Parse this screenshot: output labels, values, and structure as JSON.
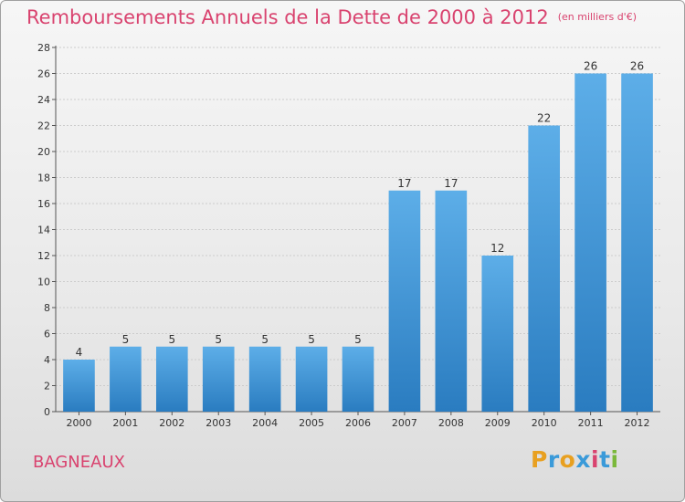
{
  "header": {
    "title": "Remboursements Annuels de la Dette de 2000 à 2012",
    "subtitle": "(en milliers d'€)"
  },
  "footer": {
    "commune": "BAGNEAUX",
    "logo_text": "Proxiti",
    "logo_colors": [
      "#e8a020",
      "#3a9ad9",
      "#e8a020",
      "#3a9ad9",
      "#d9436f",
      "#3a9ad9",
      "#7ab83a"
    ]
  },
  "colors": {
    "title": "#d9436f",
    "bar_light": "#5daee8",
    "bar_dark": "#2a7cc0",
    "grid": "#cccccc"
  },
  "chart_data": {
    "type": "bar",
    "title": "Remboursements Annuels de la Dette de 2000 à 2012",
    "subtitle": "(en milliers d'€)",
    "xlabel": "",
    "ylabel": "",
    "categories": [
      "2000",
      "2001",
      "2002",
      "2003",
      "2004",
      "2005",
      "2006",
      "2007",
      "2008",
      "2009",
      "2010",
      "2011",
      "2012"
    ],
    "values": [
      4,
      5,
      5,
      5,
      5,
      5,
      5,
      17,
      17,
      12,
      22,
      26,
      26
    ],
    "ylim": [
      0,
      28
    ],
    "yticks": [
      0,
      2,
      4,
      6,
      8,
      10,
      12,
      14,
      16,
      18,
      20,
      22,
      24,
      26,
      28
    ],
    "grid": true,
    "data_labels": true
  }
}
